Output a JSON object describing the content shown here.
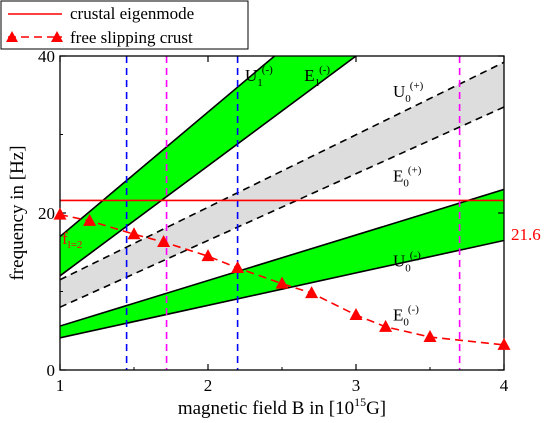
{
  "chart_data": {
    "type": "line",
    "xlabel": "magnetic field B in [10",
    "xlabel_sup": "15",
    "xlabel_end": "G]",
    "ylabel": "frequency in [Hz]",
    "xlim": [
      1,
      4
    ],
    "ylim": [
      0,
      40
    ],
    "xticks": [
      "1",
      "2",
      "3",
      "4"
    ],
    "yticks": [
      "0",
      "20",
      "40"
    ],
    "legend": {
      "placement": "top-left",
      "entries": [
        "crustal eigenmode",
        "free slipping crust"
      ]
    },
    "colors": {
      "band_green": "#00ff00",
      "band_gray": "#dddddd",
      "red": "#ff0000",
      "blue": "#0000ff",
      "magenta": "#ff00ff"
    },
    "bands": [
      {
        "id": "green-lower",
        "lower": [
          [
            1,
            4.1
          ],
          [
            4,
            16.5
          ]
        ],
        "upper": [
          [
            1,
            5.6
          ],
          [
            4,
            23.0
          ]
        ]
      },
      {
        "id": "gray-middle",
        "lower": [
          [
            1,
            8.0
          ],
          [
            4,
            33.5
          ]
        ],
        "upper": [
          [
            1,
            11.5
          ],
          [
            4,
            39.2
          ]
        ]
      },
      {
        "id": "green-upper",
        "lower": [
          [
            1,
            12.0
          ],
          [
            3.0,
            40.0
          ]
        ],
        "upper": [
          [
            1,
            17.0
          ],
          [
            2.45,
            40.0
          ]
        ]
      }
    ],
    "crustal_eigenmode": {
      "y": 21.6,
      "label": "21.6",
      "left_label": "f",
      "left_label_sub": "l=2"
    },
    "free_slipping_crust": {
      "x": [
        1.0,
        1.2,
        1.5,
        1.7,
        2.0,
        2.2,
        2.5,
        2.7,
        3.0,
        3.2,
        3.5,
        4.0
      ],
      "y": [
        19.8,
        19.0,
        17.3,
        16.3,
        14.5,
        13.0,
        11.0,
        9.8,
        7.0,
        5.5,
        4.2,
        3.2
      ]
    },
    "vlines_blue": [
      1.45,
      2.2
    ],
    "vlines_magenta": [
      1.72,
      3.7
    ],
    "band_labels": [
      {
        "base": "U",
        "sub": "1",
        "sup": "(-)",
        "x": 2.25,
        "y": 36.8
      },
      {
        "base": "E",
        "sub": "1",
        "sup": "(-)",
        "x": 2.65,
        "y": 36.8
      },
      {
        "base": "U",
        "sub": "0",
        "sup": "(+)",
        "x": 3.25,
        "y": 34.8
      },
      {
        "base": "E",
        "sub": "0",
        "sup": "(+)",
        "x": 3.25,
        "y": 24.0
      },
      {
        "base": "U",
        "sub": "0",
        "sup": "(-)",
        "x": 3.25,
        "y": 13.2
      },
      {
        "base": "E",
        "sub": "0",
        "sup": "(-)",
        "x": 3.25,
        "y": 6.3
      }
    ]
  }
}
